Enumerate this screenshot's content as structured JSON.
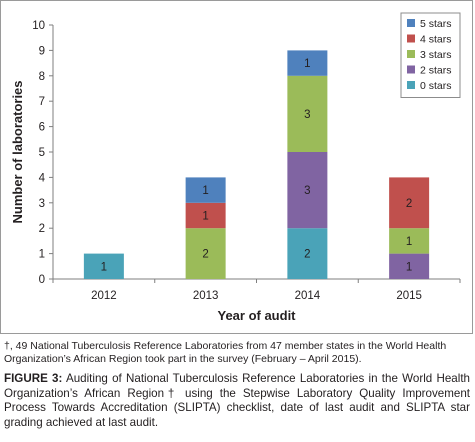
{
  "chart_data": {
    "type": "bar",
    "stacked": true,
    "categories": [
      "2012",
      "2013",
      "2014",
      "2015"
    ],
    "series": [
      {
        "name": "0 stars",
        "color": "#4aa3b8",
        "values": [
          1,
          0,
          2,
          0
        ]
      },
      {
        "name": "2 stars",
        "color": "#8064a2",
        "values": [
          0,
          0,
          3,
          1
        ]
      },
      {
        "name": "3 stars",
        "color": "#9bbb59",
        "values": [
          0,
          2,
          3,
          1
        ]
      },
      {
        "name": "4 stars",
        "color": "#c0504d",
        "values": [
          0,
          1,
          0,
          2
        ]
      },
      {
        "name": "5 stars",
        "color": "#4f81bd",
        "values": [
          0,
          1,
          1,
          0
        ]
      }
    ],
    "xlabel": "Year of audit",
    "ylabel": "Number of laboratories",
    "ylim": [
      0,
      10
    ],
    "yticks": [
      0,
      1,
      2,
      3,
      4,
      5,
      6,
      7,
      8,
      9,
      10
    ],
    "legend": {
      "position": "top-right",
      "order": [
        "5 stars",
        "4 stars",
        "3 stars",
        "2 stars",
        "0 stars"
      ]
    },
    "grid": false
  },
  "footnote": "†, 49 National Tuberculosis Reference Laboratories from 47 member states in the World Health Organization’s African Region took part in the survey (February – April 2015).",
  "caption": {
    "label": "FIGURE 3:",
    "text": " Auditing of National Tuberculosis Reference Laboratories in the World Health Organization’s African Region† using the Stepwise Laboratory Quality Improvement Process Towards Accreditation (SLIPTA) checklist, date of last audit and SLIPTA star grading achieved at last audit."
  }
}
